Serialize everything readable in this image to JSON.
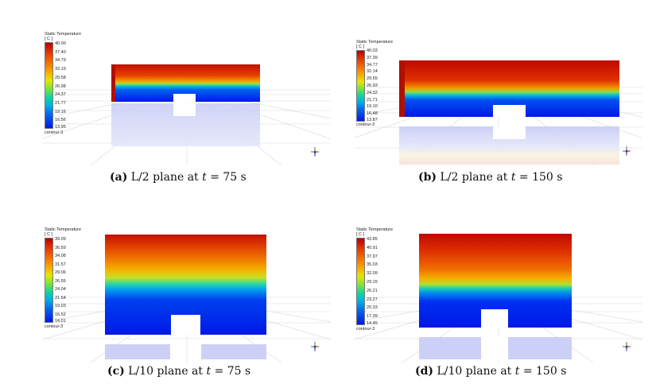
{
  "panels": [
    {
      "legend": {
        "title": "Static Temperature",
        "unit": "[ C ]",
        "ticks": [
          "40.00",
          "37.40",
          "34.79",
          "32.19",
          "29.58",
          "26.98",
          "24.37",
          "21.77",
          "19.16",
          "16.56",
          "13.95"
        ],
        "footer": "contour-3"
      },
      "caption": {
        "tag": "(a)",
        "plane": "L/2 plane at ",
        "t_var": "t",
        "t_value": " = 75 s"
      }
    },
    {
      "legend": {
        "title": "Static Temperature",
        "unit": "[ C ]",
        "ticks": [
          "40.03",
          "37.39",
          "34.77",
          "32.14",
          "29.55",
          "26.93",
          "24.32",
          "21.71",
          "19.10",
          "16.48",
          "13.87"
        ],
        "footer": "contour-3"
      },
      "caption": {
        "tag": "(b)",
        "plane": "L/2 plane at ",
        "t_var": "t",
        "t_value": " = 150 s"
      }
    },
    {
      "legend": {
        "title": "Static Temperature",
        "unit": "[ C ]",
        "ticks": [
          "39.09",
          "36.59",
          "34.08",
          "31.57",
          "29.06",
          "26.55",
          "24.04",
          "21.54",
          "19.03",
          "16.52",
          "14.01"
        ],
        "footer": "contour-3"
      },
      "caption": {
        "tag": "(c)",
        "plane": "L/10 plane at ",
        "t_var": "t",
        "t_value": " = 75 s"
      }
    },
    {
      "legend": {
        "title": "Static Temperature",
        "unit": "[ C ]",
        "ticks": [
          "43.85",
          "40.91",
          "37.97",
          "35.03",
          "32.09",
          "29.15",
          "26.21",
          "23.27",
          "20.33",
          "17.39",
          "14.45"
        ],
        "footer": "contour-3"
      },
      "caption": {
        "tag": "(d)",
        "plane": "L/10 plane at ",
        "t_var": "t",
        "t_value": " = 150 s"
      }
    }
  ],
  "colors": {
    "hot": "#b80000",
    "cold": "#0018e6",
    "reflection": "#cdd0f6",
    "floor_grid": "#d4d4d4"
  }
}
